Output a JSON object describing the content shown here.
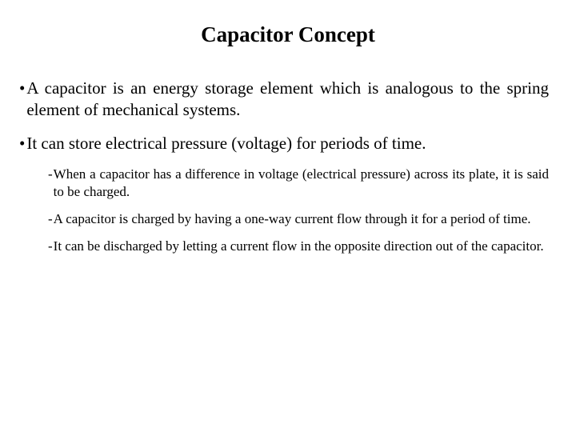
{
  "title": "Capacitor Concept",
  "bullets": [
    {
      "text": "A capacitor is an energy storage element which is analogous to the spring element of mechanical systems."
    },
    {
      "text": "It can store electrical pressure (voltage) for periods of time."
    }
  ],
  "subitems": [
    {
      "text": "When a capacitor has a difference in voltage (electrical pressure) across its plate, it is said to be charged."
    },
    {
      "text": "A capacitor is charged by having a one-way current flow through it for a period of time."
    },
    {
      "text": "It can be discharged by letting a current flow in the opposite direction out of the capacitor."
    }
  ],
  "markers": {
    "bullet": "•",
    "dash": "-"
  },
  "style": {
    "background_color": "#ffffff",
    "text_color": "#000000",
    "title_fontsize": 27,
    "bullet_fontsize": 21,
    "subitem_fontsize": 17,
    "font_family": "Times New Roman"
  }
}
